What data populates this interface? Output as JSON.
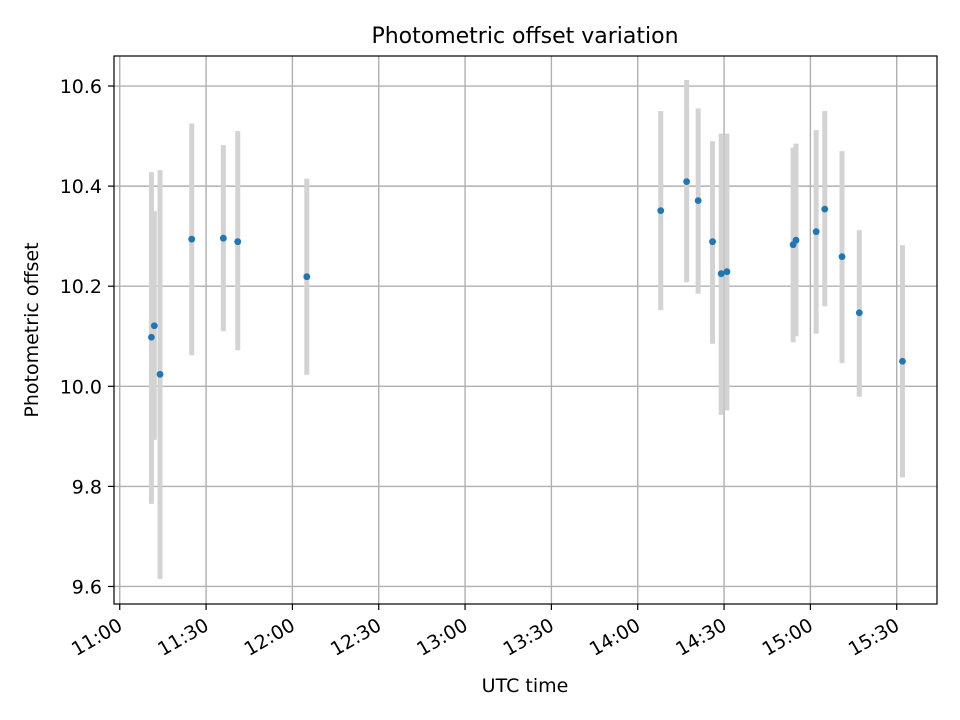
{
  "chart_data": {
    "type": "scatter",
    "title": "Photometric offset variation",
    "xlabel": "UTC time",
    "ylabel": "Photometric offset",
    "x_axis": "time",
    "xlim": [
      "10:58",
      "15:44"
    ],
    "ylim": [
      9.565,
      10.66
    ],
    "grid": true,
    "xticks": [
      "11:00",
      "11:30",
      "12:00",
      "12:30",
      "13:00",
      "13:30",
      "14:00",
      "14:30",
      "15:00",
      "15:30"
    ],
    "yticks": [
      9.6,
      9.8,
      10.0,
      10.2,
      10.4,
      10.6
    ],
    "colors": {
      "point": "#1f77b4",
      "errorbar": "#d3d3d3",
      "grid": "#b0b0b0"
    },
    "points": [
      {
        "x": "11:11",
        "y": 10.098,
        "yerr_low": 9.765,
        "yerr_high": 10.428
      },
      {
        "x": "11:12",
        "y": 10.121,
        "yerr_low": 9.893,
        "yerr_high": 10.35
      },
      {
        "x": "11:14",
        "y": 10.024,
        "yerr_low": 9.615,
        "yerr_high": 10.432
      },
      {
        "x": "11:25",
        "y": 10.294,
        "yerr_low": 10.062,
        "yerr_high": 10.525
      },
      {
        "x": "11:36",
        "y": 10.296,
        "yerr_low": 10.11,
        "yerr_high": 10.482
      },
      {
        "x": "11:41",
        "y": 10.289,
        "yerr_low": 10.072,
        "yerr_high": 10.51
      },
      {
        "x": "12:05",
        "y": 10.219,
        "yerr_low": 10.023,
        "yerr_high": 10.415
      },
      {
        "x": "14:08",
        "y": 10.351,
        "yerr_low": 10.152,
        "yerr_high": 10.55
      },
      {
        "x": "14:17",
        "y": 10.409,
        "yerr_low": 10.208,
        "yerr_high": 10.612
      },
      {
        "x": "14:21",
        "y": 10.371,
        "yerr_low": 10.185,
        "yerr_high": 10.555
      },
      {
        "x": "14:26",
        "y": 10.289,
        "yerr_low": 10.085,
        "yerr_high": 10.49
      },
      {
        "x": "14:29",
        "y": 10.225,
        "yerr_low": 9.943,
        "yerr_high": 10.505
      },
      {
        "x": "14:31",
        "y": 10.229,
        "yerr_low": 9.952,
        "yerr_high": 10.505
      },
      {
        "x": "14:54",
        "y": 10.283,
        "yerr_low": 10.088,
        "yerr_high": 10.477
      },
      {
        "x": "14:55",
        "y": 10.292,
        "yerr_low": 10.1,
        "yerr_high": 10.485
      },
      {
        "x": "15:02",
        "y": 10.309,
        "yerr_low": 10.105,
        "yerr_high": 10.512
      },
      {
        "x": "15:05",
        "y": 10.354,
        "yerr_low": 10.16,
        "yerr_high": 10.55
      },
      {
        "x": "15:11",
        "y": 10.259,
        "yerr_low": 10.046,
        "yerr_high": 10.47
      },
      {
        "x": "15:17",
        "y": 10.147,
        "yerr_low": 9.979,
        "yerr_high": 10.312
      },
      {
        "x": "15:32",
        "y": 10.05,
        "yerr_low": 9.818,
        "yerr_high": 10.282
      }
    ]
  }
}
